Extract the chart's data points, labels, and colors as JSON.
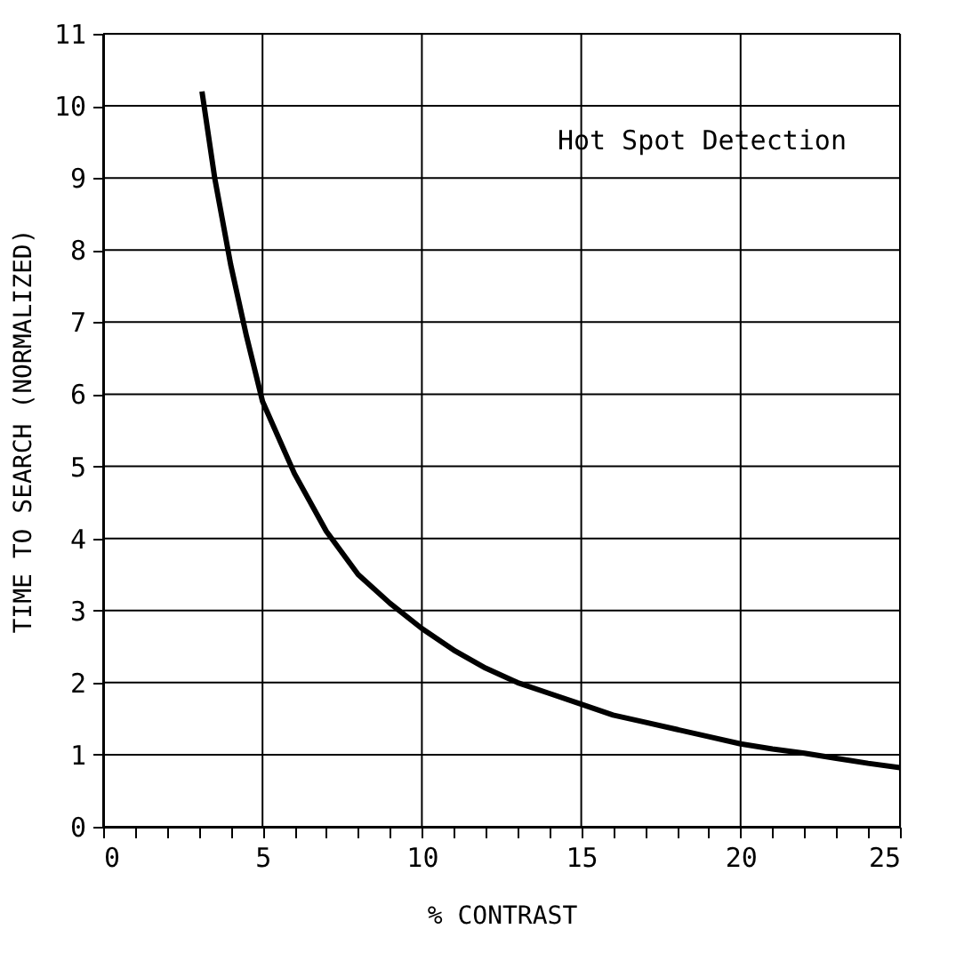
{
  "chart_data": {
    "type": "line",
    "xlabel": "% CONTRAST",
    "ylabel": "TIME TO SEARCH (NORMALIZED)",
    "annotations": [
      "Hot Spot Detection"
    ],
    "x": [
      3.1,
      3.5,
      4,
      4.5,
      5,
      6,
      7,
      8,
      9,
      10,
      11,
      12,
      13,
      14,
      15,
      16,
      17,
      18,
      19,
      20,
      21,
      22,
      23,
      24,
      25
    ],
    "series": [
      {
        "color": "#000000",
        "values": [
          10.2,
          9.0,
          7.8,
          6.8,
          5.9,
          4.9,
          4.1,
          3.5,
          3.1,
          2.75,
          2.45,
          2.2,
          2.0,
          1.85,
          1.7,
          1.55,
          1.45,
          1.35,
          1.25,
          1.15,
          1.08,
          1.02,
          0.95,
          0.88,
          0.82
        ]
      }
    ],
    "xlim": [
      0,
      25
    ],
    "ylim": [
      0,
      11
    ],
    "xticks": [
      0,
      {
        "value": 1,
        "label": null
      },
      {
        "value": 2,
        "label": null
      },
      {
        "value": 3,
        "label": null
      },
      {
        "value": 4,
        "label": null
      },
      5,
      {
        "value": 6,
        "label": null
      },
      {
        "value": 7,
        "label": null
      },
      {
        "value": 8,
        "label": null
      },
      {
        "value": 9,
        "label": null
      },
      10,
      {
        "value": 11,
        "label": null
      },
      {
        "value": 12,
        "label": null
      },
      {
        "value": 13,
        "label": null
      },
      {
        "value": 14,
        "label": null
      },
      15,
      {
        "value": 16,
        "label": null
      },
      {
        "value": 17,
        "label": null
      },
      {
        "value": 18,
        "label": null
      },
      {
        "value": 19,
        "label": null
      },
      20,
      {
        "value": 21,
        "label": null
      },
      {
        "value": 22,
        "label": null
      },
      {
        "value": 23,
        "label": null
      },
      {
        "value": 24,
        "label": null
      },
      25
    ],
    "yticks": [
      0,
      1,
      2,
      3,
      4,
      5,
      6,
      7,
      8,
      9,
      10,
      11
    ],
    "grid": true,
    "marker": "none",
    "line_style": "solid",
    "legend": false
  }
}
